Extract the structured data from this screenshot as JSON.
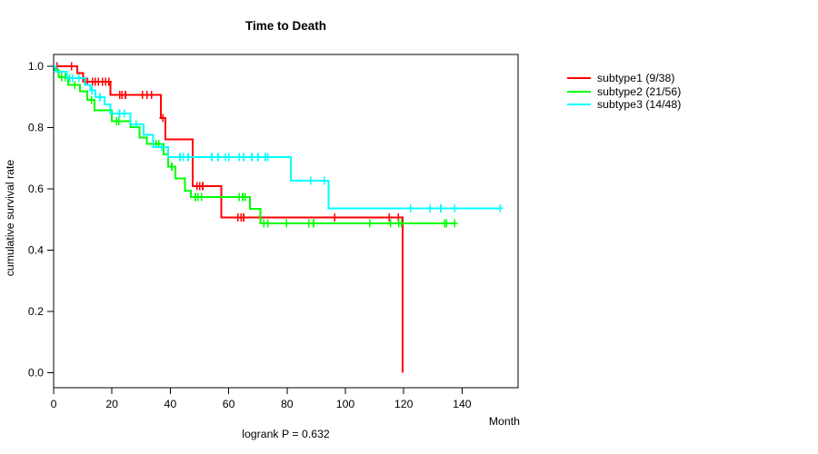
{
  "title": "Time to Death",
  "footnote": "logrank P = 0.632",
  "x_axis": {
    "label": "Month",
    "ticks": [
      0,
      20,
      40,
      60,
      80,
      100,
      120,
      140
    ]
  },
  "y_axis": {
    "label": "cumulative survival rate",
    "ticks": [
      "1.0",
      "0.8",
      "0.6",
      "0.4",
      "0.2",
      "0.0"
    ],
    "tick_values": [
      1.0,
      0.8,
      0.6,
      0.4,
      0.2,
      0.0
    ]
  },
  "legend": [
    {
      "label": "subtype1 (9/38)",
      "color": "#ff0000"
    },
    {
      "label": "subtype2 (21/56)",
      "color": "#00ff00"
    },
    {
      "label": "subtype3 (14/48)",
      "color": "#00ffff"
    }
  ],
  "chart_data": {
    "type": "line",
    "variant": "kaplan-meier-step",
    "title": "Time to Death",
    "xlabel": "Month",
    "ylabel": "cumulative survival rate",
    "xlim": [
      0,
      159
    ],
    "ylim": [
      0.0,
      1.0
    ],
    "grid": false,
    "legend_position": "right-outside",
    "annotation": "logrank P = 0.632",
    "series": [
      {
        "name": "subtype1 (9/38)",
        "color": "#ff0000",
        "n": 38,
        "events": 9,
        "steps": [
          [
            0,
            1.0
          ],
          [
            8.1,
            0.978
          ],
          [
            10.2,
            0.949
          ],
          [
            19.5,
            0.907
          ],
          [
            36.7,
            0.831
          ],
          [
            38.3,
            0.762
          ],
          [
            47.6,
            0.609
          ],
          [
            57.4,
            0.507
          ],
          [
            119.6,
            0.0
          ]
        ],
        "end_time": 119.6,
        "censors": [
          [
            1.2,
            1.0
          ],
          [
            6.2,
            1.0
          ],
          [
            10.9,
            0.949
          ],
          [
            11.6,
            0.949
          ],
          [
            13.3,
            0.949
          ],
          [
            14.3,
            0.949
          ],
          [
            15.3,
            0.949
          ],
          [
            16.8,
            0.949
          ],
          [
            17.8,
            0.949
          ],
          [
            18.9,
            0.949
          ],
          [
            22.7,
            0.907
          ],
          [
            23.4,
            0.907
          ],
          [
            24.6,
            0.907
          ],
          [
            30.4,
            0.907
          ],
          [
            32.0,
            0.907
          ],
          [
            33.6,
            0.907
          ],
          [
            37.4,
            0.831
          ],
          [
            49.2,
            0.609
          ],
          [
            50.1,
            0.609
          ],
          [
            51.1,
            0.609
          ],
          [
            63.2,
            0.507
          ],
          [
            64.2,
            0.507
          ],
          [
            65.1,
            0.507
          ],
          [
            96.3,
            0.507
          ],
          [
            115.0,
            0.507
          ],
          [
            118.1,
            0.507
          ]
        ]
      },
      {
        "name": "subtype2 (21/56)",
        "color": "#00ff00",
        "n": 56,
        "events": 21,
        "steps": [
          [
            0,
            1.0
          ],
          [
            0.5,
            0.988
          ],
          [
            1.7,
            0.965
          ],
          [
            5.0,
            0.939
          ],
          [
            9.1,
            0.919
          ],
          [
            11.5,
            0.89
          ],
          [
            14.0,
            0.856
          ],
          [
            20.0,
            0.821
          ],
          [
            26.3,
            0.801
          ],
          [
            29.4,
            0.767
          ],
          [
            32.0,
            0.747
          ],
          [
            37.7,
            0.713
          ],
          [
            39.3,
            0.673
          ],
          [
            41.8,
            0.634
          ],
          [
            45.0,
            0.594
          ],
          [
            47.0,
            0.574
          ],
          [
            67.3,
            0.535
          ],
          [
            70.9,
            0.487
          ]
        ],
        "end_time": 137.9,
        "censors": [
          [
            2.7,
            0.965
          ],
          [
            4.0,
            0.965
          ],
          [
            7.2,
            0.939
          ],
          [
            13.0,
            0.89
          ],
          [
            21.6,
            0.821
          ],
          [
            22.4,
            0.821
          ],
          [
            35.1,
            0.747
          ],
          [
            36.1,
            0.747
          ],
          [
            40.5,
            0.673
          ],
          [
            48.6,
            0.574
          ],
          [
            49.5,
            0.574
          ],
          [
            50.7,
            0.574
          ],
          [
            63.6,
            0.574
          ],
          [
            64.8,
            0.574
          ],
          [
            65.7,
            0.574
          ],
          [
            72.0,
            0.487
          ],
          [
            73.5,
            0.487
          ],
          [
            79.8,
            0.487
          ],
          [
            87.5,
            0.487
          ],
          [
            89.1,
            0.487
          ],
          [
            108.3,
            0.487
          ],
          [
            115.5,
            0.487
          ],
          [
            118.3,
            0.487
          ],
          [
            119.2,
            0.487
          ],
          [
            134.0,
            0.487
          ],
          [
            134.6,
            0.487
          ],
          [
            137.4,
            0.487
          ]
        ]
      },
      {
        "name": "subtype3 (14/48)",
        "color": "#00ffff",
        "n": 48,
        "events": 14,
        "steps": [
          [
            0,
            1.0
          ],
          [
            0.8,
            0.982
          ],
          [
            4.5,
            0.961
          ],
          [
            10.7,
            0.94
          ],
          [
            12.6,
            0.921
          ],
          [
            14.3,
            0.899
          ],
          [
            17.4,
            0.876
          ],
          [
            19.5,
            0.846
          ],
          [
            26.3,
            0.811
          ],
          [
            30.9,
            0.777
          ],
          [
            34.1,
            0.737
          ],
          [
            39.3,
            0.703
          ],
          [
            81.3,
            0.627
          ],
          [
            94.3,
            0.537
          ]
        ],
        "end_time": 153.5,
        "censors": [
          [
            5.5,
            0.961
          ],
          [
            6.5,
            0.961
          ],
          [
            8.6,
            0.961
          ],
          [
            13.2,
            0.921
          ],
          [
            15.9,
            0.899
          ],
          [
            22.6,
            0.846
          ],
          [
            24.2,
            0.846
          ],
          [
            28.3,
            0.811
          ],
          [
            37.0,
            0.737
          ],
          [
            43.3,
            0.703
          ],
          [
            44.5,
            0.703
          ],
          [
            46.1,
            0.703
          ],
          [
            54.2,
            0.703
          ],
          [
            56.4,
            0.703
          ],
          [
            58.9,
            0.703
          ],
          [
            60.1,
            0.703
          ],
          [
            63.6,
            0.703
          ],
          [
            65.1,
            0.703
          ],
          [
            67.9,
            0.703
          ],
          [
            70.1,
            0.703
          ],
          [
            72.6,
            0.703
          ],
          [
            73.4,
            0.703
          ],
          [
            88.1,
            0.627
          ],
          [
            92.7,
            0.627
          ],
          [
            122.3,
            0.537
          ],
          [
            129.1,
            0.537
          ],
          [
            132.7,
            0.537
          ],
          [
            137.4,
            0.537
          ],
          [
            153.0,
            0.537
          ]
        ]
      }
    ]
  }
}
